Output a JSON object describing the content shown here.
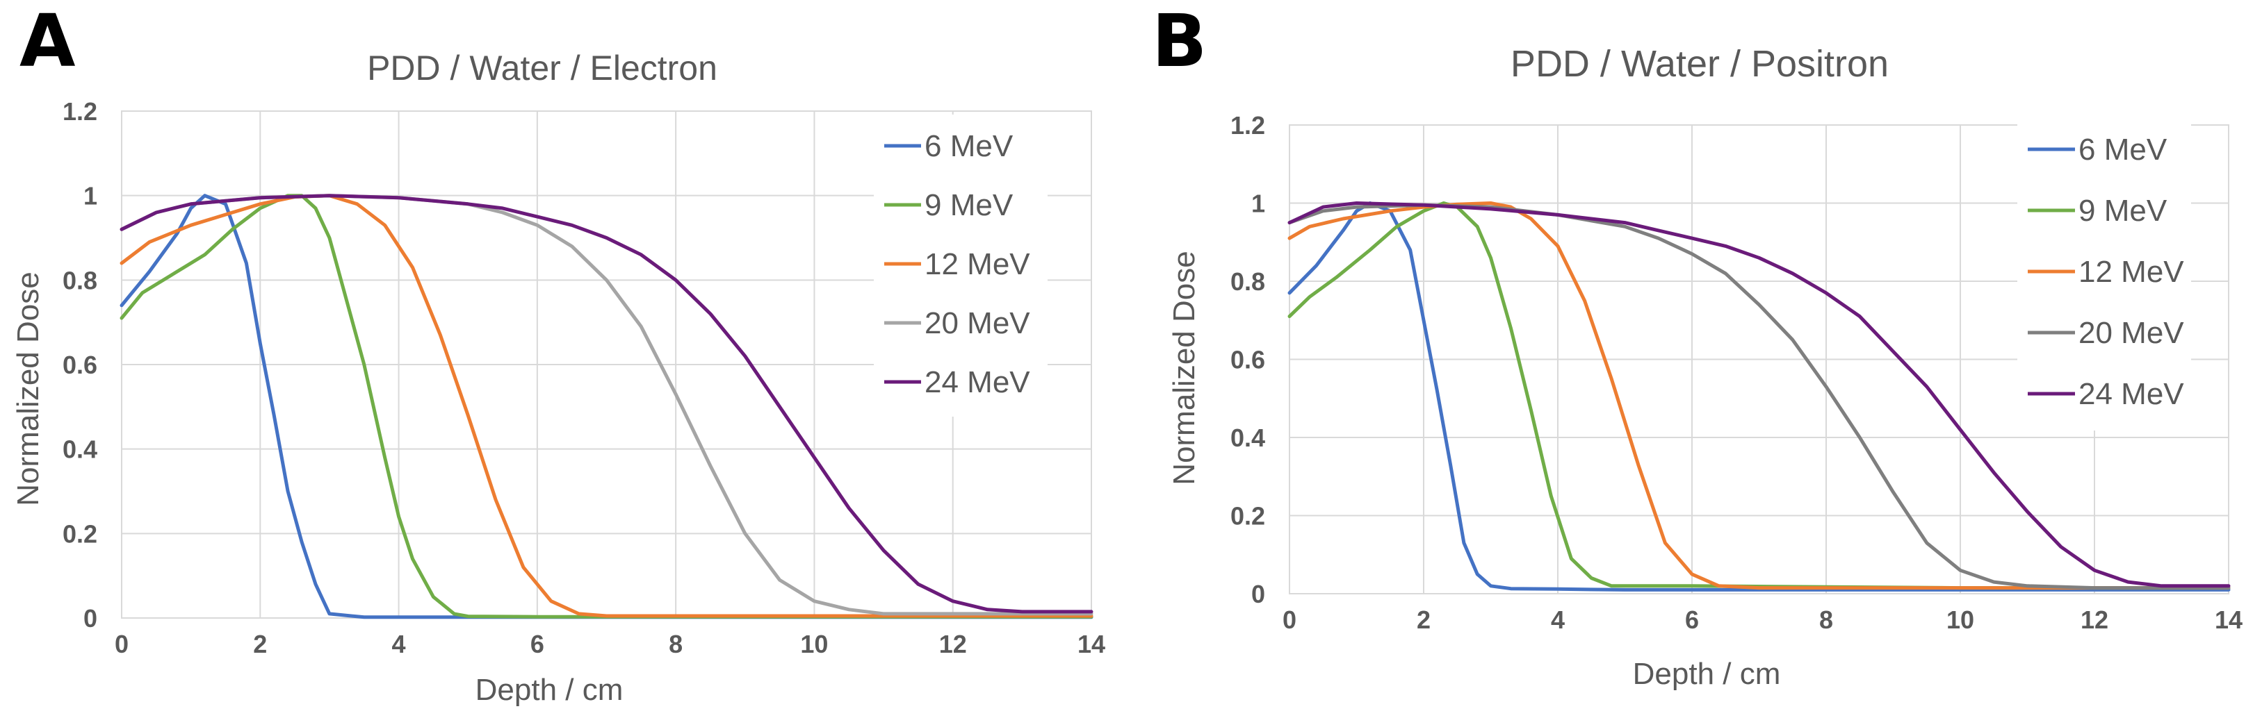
{
  "chart_data": [
    {
      "panel_label": "A",
      "type": "line",
      "title": "PDD / Water / Electron",
      "xlabel": "Depth / cm",
      "ylabel": "Normalized Dose",
      "xlim": [
        0,
        14
      ],
      "ylim": [
        0,
        1.2
      ],
      "xticks": [
        "0",
        "2",
        "4",
        "6",
        "8",
        "10",
        "12",
        "14"
      ],
      "yticks": [
        "0",
        "0.2",
        "0.4",
        "0.6",
        "0.8",
        "1",
        "1.2"
      ],
      "grid": true,
      "legend_position": "top-right",
      "series": [
        {
          "name": "6 MeV",
          "color": "#4472c4",
          "x": [
            0,
            0.4,
            0.8,
            1.0,
            1.2,
            1.5,
            1.8,
            2.0,
            2.2,
            2.4,
            2.6,
            2.8,
            3.0,
            3.5,
            4,
            6,
            10,
            14
          ],
          "y": [
            0.74,
            0.82,
            0.91,
            0.97,
            1.0,
            0.98,
            0.84,
            0.65,
            0.48,
            0.3,
            0.18,
            0.08,
            0.01,
            0.002,
            0.002,
            0.002,
            0.002,
            0.002
          ]
        },
        {
          "name": "9 MeV",
          "color": "#70ad47",
          "x": [
            0,
            0.3,
            0.7,
            1.2,
            1.6,
            2.0,
            2.4,
            2.6,
            2.8,
            3.0,
            3.2,
            3.5,
            3.8,
            4.0,
            4.2,
            4.5,
            4.8,
            5.0,
            6,
            10,
            14
          ],
          "y": [
            0.71,
            0.77,
            0.81,
            0.86,
            0.92,
            0.97,
            1.0,
            1.0,
            0.97,
            0.9,
            0.78,
            0.6,
            0.38,
            0.24,
            0.14,
            0.05,
            0.01,
            0.004,
            0.003,
            0.003,
            0.003
          ]
        },
        {
          "name": "12 MeV",
          "color": "#ed7d31",
          "x": [
            0,
            0.4,
            1.0,
            1.6,
            2.0,
            2.5,
            3.0,
            3.4,
            3.8,
            4.2,
            4.6,
            5.0,
            5.4,
            5.8,
            6.2,
            6.6,
            7,
            10,
            14
          ],
          "y": [
            0.84,
            0.89,
            0.93,
            0.96,
            0.98,
            0.997,
            1.0,
            0.98,
            0.93,
            0.83,
            0.67,
            0.48,
            0.28,
            0.12,
            0.04,
            0.01,
            0.005,
            0.005,
            0.005
          ]
        },
        {
          "name": "20 MeV",
          "color": "#a5a5a5",
          "x": [
            0,
            0.5,
            1.0,
            2.0,
            3.0,
            4.0,
            5.0,
            5.5,
            6.0,
            6.5,
            7.0,
            7.5,
            8.0,
            8.5,
            9.0,
            9.5,
            10.0,
            10.5,
            11.0,
            12,
            14
          ],
          "y": [
            0.92,
            0.96,
            0.98,
            0.995,
            1.0,
            0.995,
            0.98,
            0.96,
            0.93,
            0.88,
            0.8,
            0.69,
            0.53,
            0.36,
            0.2,
            0.09,
            0.04,
            0.02,
            0.01,
            0.01,
            0.01
          ]
        },
        {
          "name": "24 MeV",
          "color": "#6a1b7a",
          "x": [
            0,
            0.5,
            1.0,
            2.0,
            3.0,
            4.0,
            5.0,
            5.5,
            6.0,
            6.5,
            7.0,
            7.5,
            8.0,
            8.5,
            9.0,
            9.5,
            10.0,
            10.5,
            11.0,
            11.5,
            12.0,
            12.5,
            13.0,
            14
          ],
          "y": [
            0.92,
            0.96,
            0.98,
            0.995,
            1.0,
            0.995,
            0.98,
            0.97,
            0.95,
            0.93,
            0.9,
            0.86,
            0.8,
            0.72,
            0.62,
            0.5,
            0.38,
            0.26,
            0.16,
            0.08,
            0.04,
            0.02,
            0.015,
            0.015
          ]
        }
      ]
    },
    {
      "panel_label": "B",
      "type": "line",
      "title": "PDD  / Water / Positron",
      "xlabel": "Depth / cm",
      "ylabel": "Normalized Dose",
      "xlim": [
        0,
        14
      ],
      "ylim": [
        0,
        1.2
      ],
      "xticks": [
        "0",
        "2",
        "4",
        "6",
        "8",
        "10",
        "12",
        "14"
      ],
      "yticks": [
        "0",
        "0.2",
        "0.4",
        "0.6",
        "0.8",
        "1",
        "1.2"
      ],
      "grid": true,
      "legend_position": "top-right",
      "series": [
        {
          "name": "6 MeV",
          "color": "#4472c4",
          "x": [
            0,
            0.4,
            0.8,
            1.0,
            1.2,
            1.5,
            1.8,
            2.0,
            2.2,
            2.4,
            2.6,
            2.8,
            3.0,
            3.3,
            4,
            5,
            6,
            10,
            14
          ],
          "y": [
            0.77,
            0.84,
            0.93,
            0.98,
            1.0,
            0.98,
            0.88,
            0.7,
            0.52,
            0.33,
            0.13,
            0.05,
            0.02,
            0.013,
            0.012,
            0.01,
            0.01,
            0.01,
            0.01
          ]
        },
        {
          "name": "9 MeV",
          "color": "#70ad47",
          "x": [
            0,
            0.3,
            0.7,
            1.2,
            1.6,
            2.0,
            2.3,
            2.5,
            2.8,
            3.0,
            3.3,
            3.6,
            3.9,
            4.2,
            4.5,
            4.8,
            5.2,
            6,
            10,
            14
          ],
          "y": [
            0.71,
            0.76,
            0.81,
            0.88,
            0.94,
            0.98,
            1.0,
            0.99,
            0.94,
            0.86,
            0.68,
            0.47,
            0.25,
            0.09,
            0.04,
            0.02,
            0.02,
            0.02,
            0.015,
            0.015
          ]
        },
        {
          "name": "12 MeV",
          "color": "#ed7d31",
          "x": [
            0,
            0.3,
            0.8,
            1.5,
            2.0,
            2.5,
            3.0,
            3.3,
            3.6,
            4.0,
            4.4,
            4.8,
            5.2,
            5.6,
            6.0,
            6.4,
            7,
            10,
            14
          ],
          "y": [
            0.91,
            0.94,
            0.96,
            0.98,
            0.99,
            0.997,
            1.0,
            0.99,
            0.96,
            0.89,
            0.75,
            0.55,
            0.33,
            0.13,
            0.05,
            0.02,
            0.015,
            0.015,
            0.015
          ]
        },
        {
          "name": "20 MeV",
          "color": "#7f7f7f",
          "x": [
            0,
            0.5,
            1.0,
            2.0,
            3.0,
            4.0,
            5.0,
            5.5,
            6.0,
            6.5,
            7.0,
            7.5,
            8.0,
            8.5,
            9.0,
            9.5,
            10.0,
            10.5,
            11.0,
            12,
            14
          ],
          "y": [
            0.95,
            0.98,
            0.99,
            0.995,
            0.99,
            0.97,
            0.94,
            0.91,
            0.87,
            0.82,
            0.74,
            0.65,
            0.53,
            0.4,
            0.26,
            0.13,
            0.06,
            0.03,
            0.02,
            0.015,
            0.015
          ]
        },
        {
          "name": "24 MeV",
          "color": "#6a1b7a",
          "x": [
            0,
            0.5,
            1.0,
            2.0,
            3.0,
            4.0,
            5.0,
            5.5,
            6.0,
            6.5,
            7.0,
            7.5,
            8.0,
            8.5,
            9.0,
            9.5,
            10.0,
            10.5,
            11.0,
            11.5,
            12.0,
            12.5,
            13.0,
            14
          ],
          "y": [
            0.95,
            0.99,
            1.0,
            0.995,
            0.985,
            0.97,
            0.95,
            0.93,
            0.91,
            0.89,
            0.86,
            0.82,
            0.77,
            0.71,
            0.62,
            0.53,
            0.42,
            0.31,
            0.21,
            0.12,
            0.06,
            0.03,
            0.02,
            0.02
          ]
        }
      ]
    }
  ]
}
